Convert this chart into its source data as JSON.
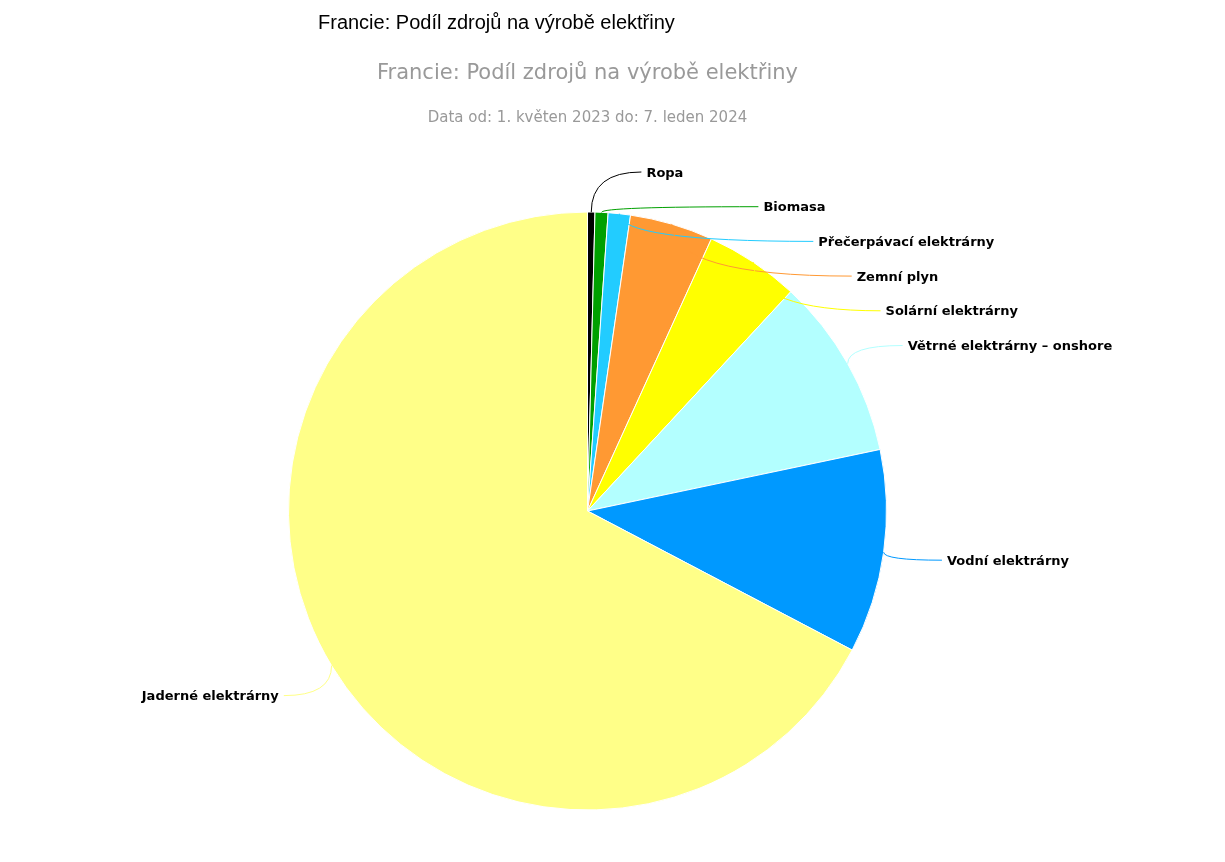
{
  "chart_data": {
    "type": "pie",
    "title": "Francie: Podíl zdrojů na výrobě elektřiny",
    "subtitle": "Data od: 1. květen 2023 do: 7. leden 2024",
    "annotations": [
      "Francie: Podíl zdrojů na výrobě elektřiny"
    ],
    "categories": [
      "Ropa",
      "Biomasa",
      "Přečerpávací elektrárny",
      "Zemní plyn",
      "Solární elektrárny",
      "Větrné elektrárny – onshore",
      "Vodní elektrárny",
      "Jaderné elektrárny"
    ],
    "values": [
      0.4,
      0.7,
      1.2,
      4.5,
      5.1,
      9.8,
      11.0,
      67.3
    ],
    "colors": [
      "#000000",
      "#00a000",
      "#22ccff",
      "#ff9933",
      "#ffff00",
      "#b3ffff",
      "#0099ff",
      "#ffff88"
    ]
  }
}
